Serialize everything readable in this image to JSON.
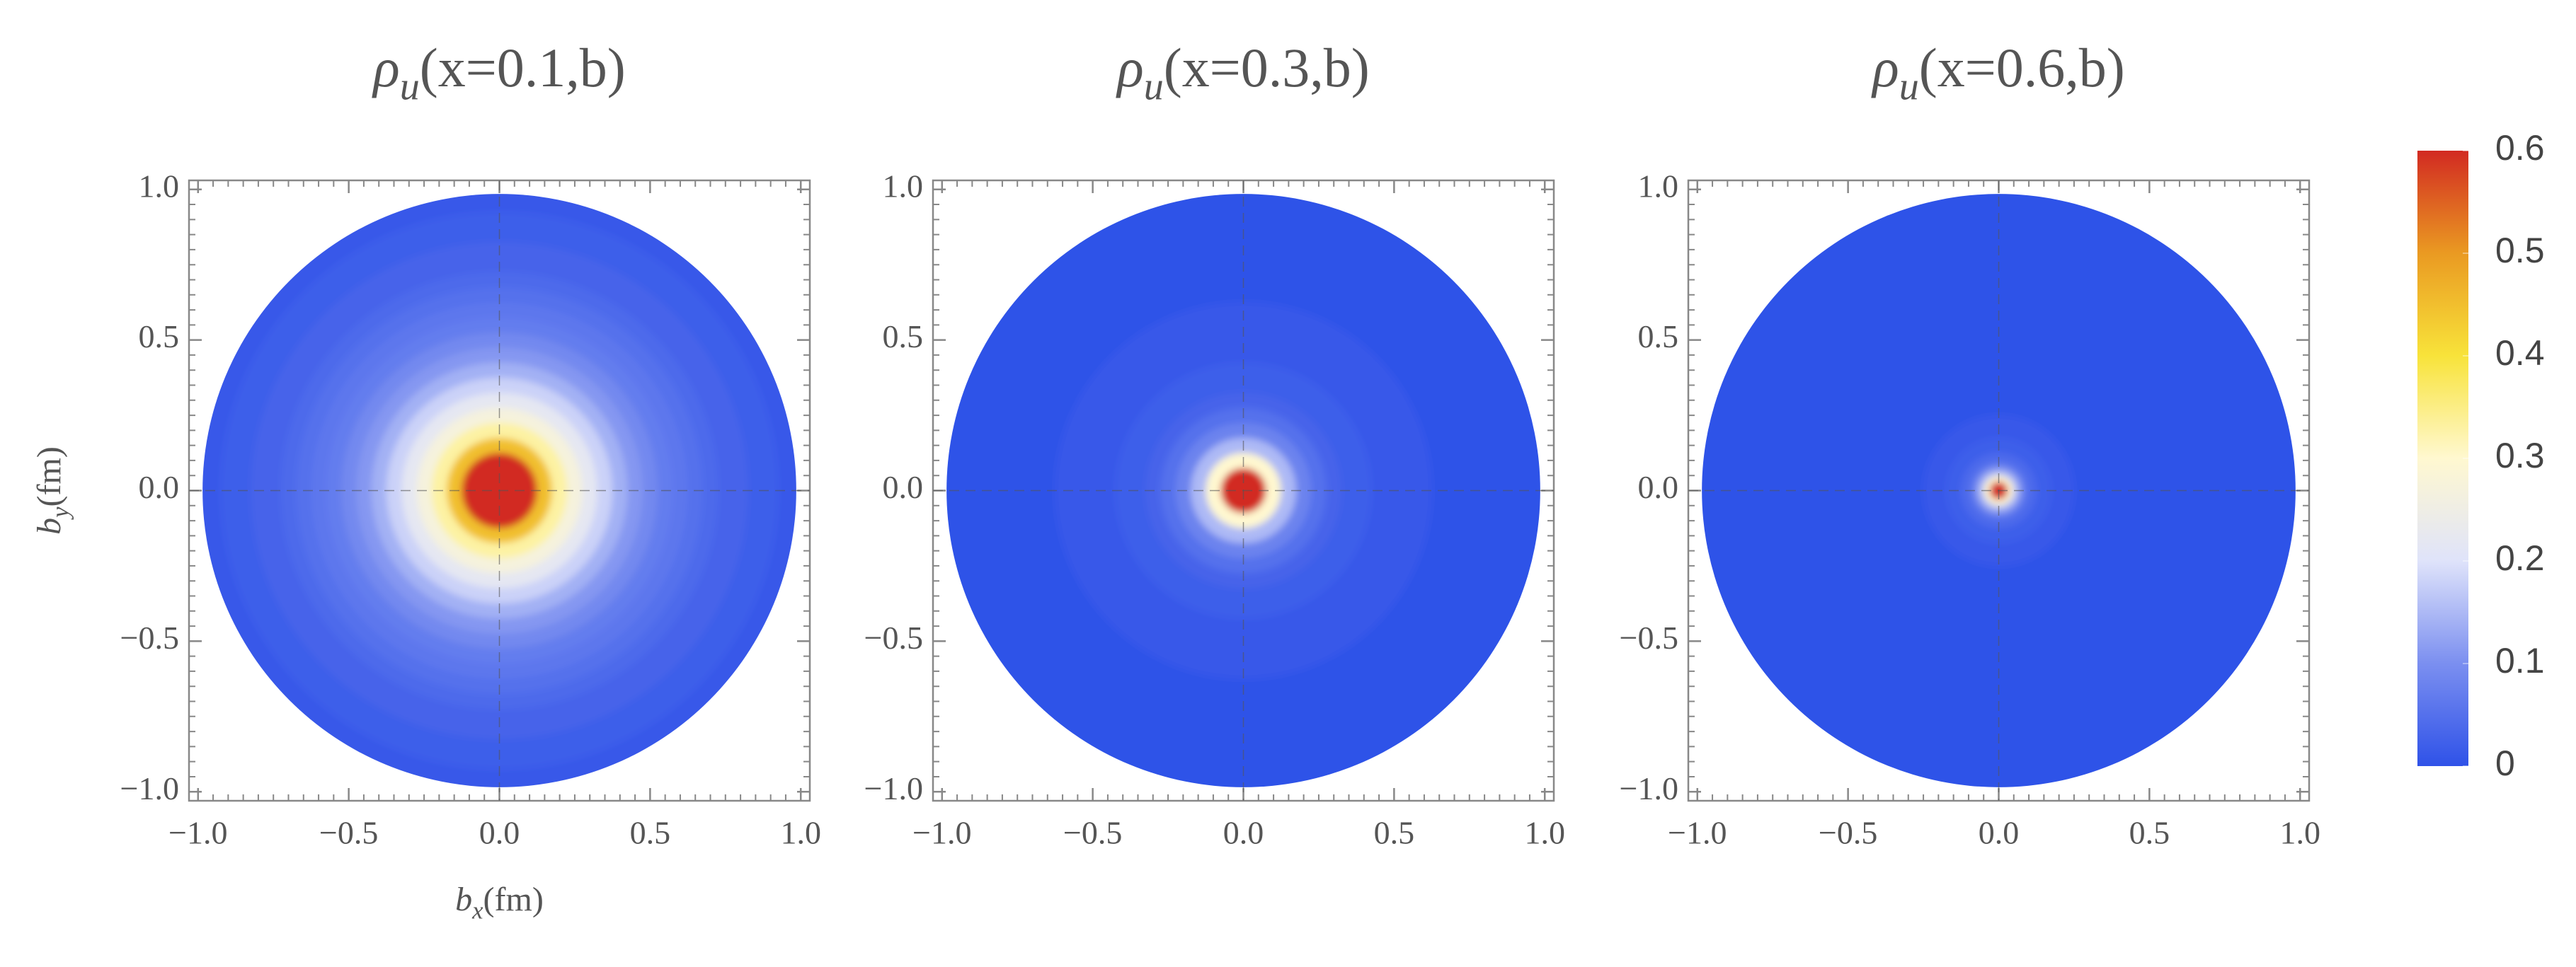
{
  "chart_data": [
    {
      "type": "density",
      "title": {
        "symbol": "ρ",
        "subscript": "u",
        "args": "(x=0.1,b)"
      },
      "xlabel": {
        "symbol": "b",
        "subscript": "x",
        "unit": "(fm)"
      },
      "ylabel": {
        "symbol": "b",
        "subscript": "y",
        "unit": "(fm)"
      },
      "r": [
        0,
        0.05,
        0.1,
        0.15,
        0.2,
        0.25,
        0.3,
        0.35,
        0.4,
        0.45,
        0.5,
        0.55,
        0.6,
        0.65,
        0.7,
        0.75,
        0.8,
        0.85,
        0.9,
        0.95,
        1.0
      ],
      "values": [
        1.5,
        1.2,
        0.65,
        0.45,
        0.33,
        0.27,
        0.22,
        0.18,
        0.14,
        0.11,
        0.09,
        0.07,
        0.06,
        0.05,
        0.04,
        0.03,
        0.03,
        0.02,
        0.02,
        0.01,
        0.01
      ],
      "xlim": [
        -1.03,
        1.03
      ],
      "ylim": [
        -1.03,
        1.03
      ],
      "xticks": [
        {
          "value": -1.0,
          "label": "−1.0"
        },
        {
          "value": -0.5,
          "label": "−0.5"
        },
        {
          "value": 0,
          "label": "0.0"
        },
        {
          "value": 0.5,
          "label": "0.5"
        },
        {
          "value": 1.0,
          "label": "1.0"
        }
      ],
      "yticks": [
        {
          "value": -1.0,
          "label": "−1.0"
        },
        {
          "value": -0.5,
          "label": "−0.5"
        },
        {
          "value": 0,
          "label": "0.0"
        },
        {
          "value": 0.5,
          "label": "0.5"
        },
        {
          "value": 1.0,
          "label": "1.0"
        }
      ]
    },
    {
      "type": "density",
      "title": {
        "symbol": "ρ",
        "subscript": "u",
        "args": "(x=0.3,b)"
      },
      "r": [
        0,
        0.05,
        0.1,
        0.15,
        0.2,
        0.25,
        0.3,
        0.35,
        0.4,
        0.45,
        0.5,
        0.55,
        0.6,
        0.65,
        0.7,
        0.75,
        0.8,
        0.85,
        0.9,
        0.95,
        1.0
      ],
      "values": [
        3.0,
        0.6,
        0.3,
        0.15,
        0.08,
        0.05,
        0.03,
        0.02,
        0.02,
        0.01,
        0.01,
        0.01,
        0.01,
        0,
        0,
        0,
        0,
        0,
        0,
        0,
        0
      ],
      "xlim": [
        -1.03,
        1.03
      ],
      "ylim": [
        -1.03,
        1.03
      ],
      "xticks": [
        {
          "value": -1.0,
          "label": "−1.0"
        },
        {
          "value": -0.5,
          "label": "−0.5"
        },
        {
          "value": 0,
          "label": "0.0"
        },
        {
          "value": 0.5,
          "label": "0.5"
        },
        {
          "value": 1.0,
          "label": "1.0"
        }
      ],
      "yticks": [
        {
          "value": -1.0,
          "label": "−1.0"
        },
        {
          "value": -0.5,
          "label": "−0.5"
        },
        {
          "value": 0,
          "label": "0.0"
        },
        {
          "value": 0.5,
          "label": "0.5"
        },
        {
          "value": 1.0,
          "label": "1.0"
        }
      ]
    },
    {
      "type": "density",
      "title": {
        "symbol": "ρ",
        "subscript": "u",
        "args": "(x=0.6,b)"
      },
      "r": [
        0,
        0.02,
        0.04,
        0.06,
        0.08,
        0.1,
        0.15,
        0.2,
        0.3,
        0.5,
        1.0
      ],
      "values": [
        5.0,
        0.6,
        0.3,
        0.15,
        0.08,
        0.04,
        0.02,
        0.01,
        0,
        0,
        0
      ],
      "xlim": [
        -1.03,
        1.03
      ],
      "ylim": [
        -1.03,
        1.03
      ],
      "xticks": [
        {
          "value": -1.0,
          "label": "−1.0"
        },
        {
          "value": -0.5,
          "label": "−0.5"
        },
        {
          "value": 0,
          "label": "0.0"
        },
        {
          "value": 0.5,
          "label": "0.5"
        },
        {
          "value": 1.0,
          "label": "1.0"
        }
      ],
      "yticks": [
        {
          "value": -1.0,
          "label": "−1.0"
        },
        {
          "value": -0.5,
          "label": "−0.5"
        },
        {
          "value": 0,
          "label": "0.0"
        },
        {
          "value": 0.5,
          "label": "0.5"
        },
        {
          "value": 1.0,
          "label": "1.0"
        }
      ]
    }
  ],
  "colorbar": {
    "clim": [
      0,
      0.6
    ],
    "ticks": [
      0,
      0.1,
      0.2,
      0.3,
      0.4,
      0.5,
      0.6
    ],
    "colormap": [
      "#2f52e8",
      "#7b8ff0",
      "#dfe3fa",
      "#fff8d0",
      "#f8e33a",
      "#ea9a22",
      "#d22a22"
    ]
  }
}
